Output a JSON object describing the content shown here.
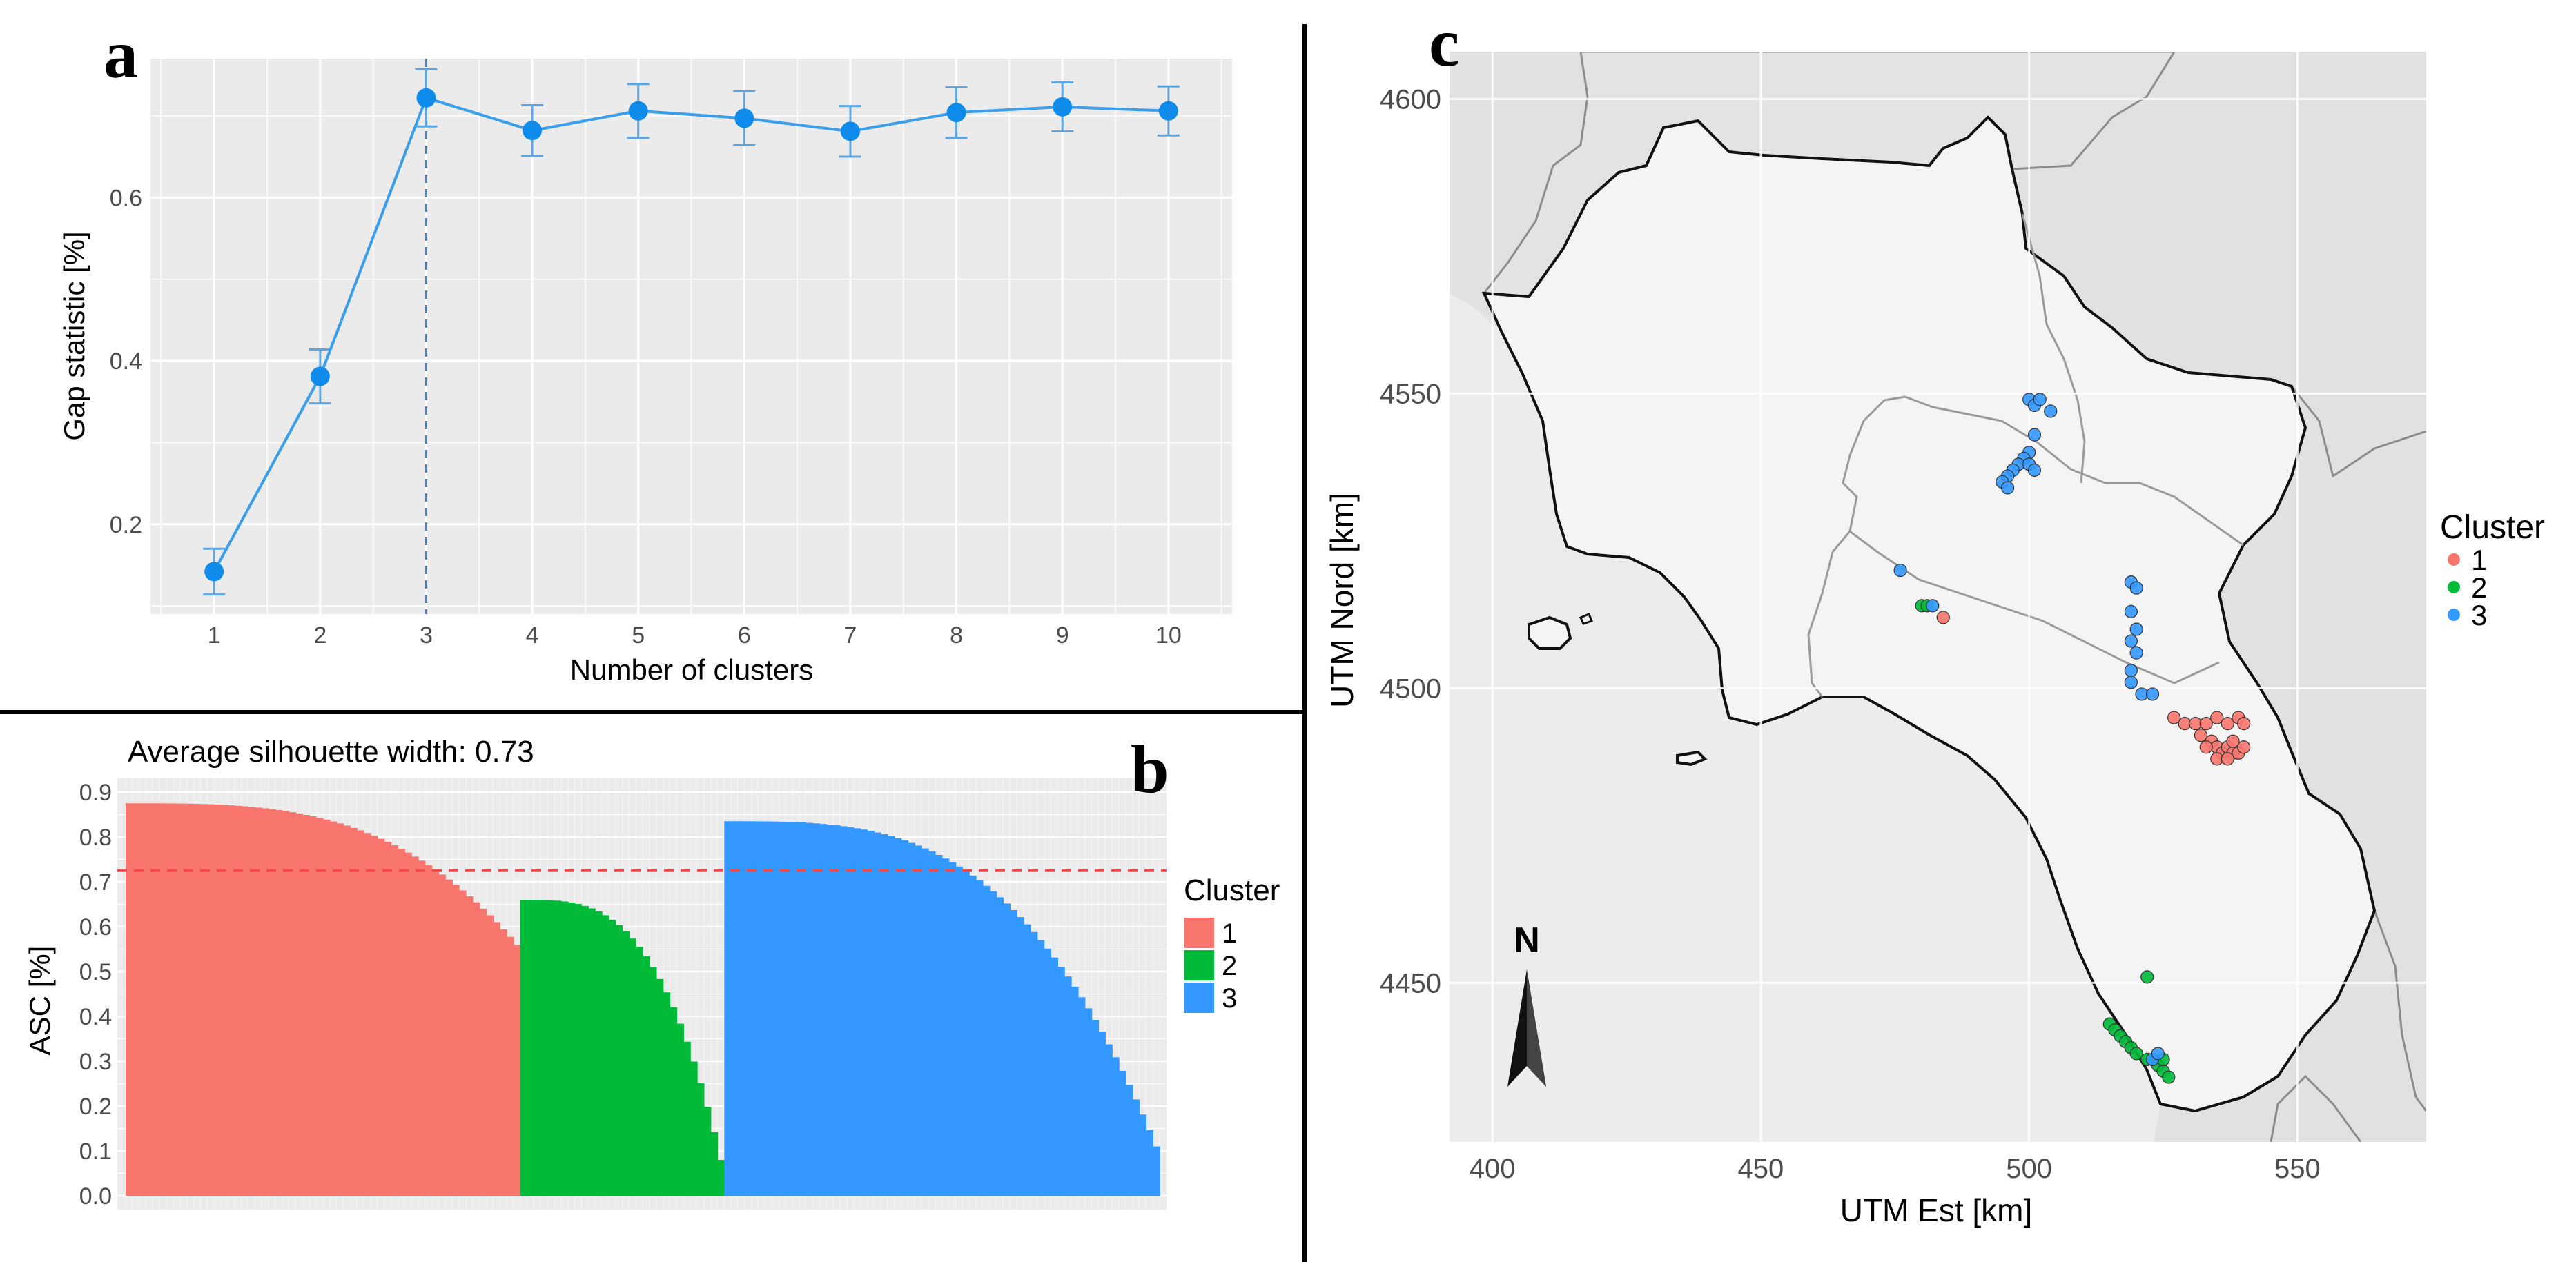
{
  "colors": {
    "panel_bg": "#ebebeb",
    "grid": "#ffffff",
    "line_blue": "#1e90ff",
    "point_blue": "#0f8ceb",
    "errorbar": "#5da6e3",
    "cluster1": "#f8766d",
    "cluster2": "#00ba38",
    "cluster3": "#3398ff",
    "refline": "#f04a4a",
    "region_fill": "#f5f5f5",
    "border_dark": "#111111",
    "border_gray": "#9a9a9a"
  },
  "chart_data": [
    {
      "id": "a",
      "type": "line",
      "panel_label": "a",
      "title": "",
      "xlabel": "Number of clusters",
      "ylabel": "Gap statistic [%]",
      "x": [
        1,
        2,
        3,
        4,
        5,
        6,
        7,
        8,
        9,
        10
      ],
      "x_tick_labels": [
        "1",
        "2",
        "3",
        "4",
        "5",
        "6",
        "7",
        "8",
        "9",
        "10"
      ],
      "y": [
        0.142,
        0.381,
        0.722,
        0.682,
        0.706,
        0.697,
        0.681,
        0.704,
        0.711,
        0.706
      ],
      "y_err": [
        0.028,
        0.033,
        0.035,
        0.031,
        0.033,
        0.033,
        0.031,
        0.031,
        0.03,
        0.03
      ],
      "y_ticks": [
        0.2,
        0.4,
        0.6
      ],
      "y_tick_labels": [
        "0.2",
        "0.4",
        "0.6"
      ],
      "xlim": [
        0.4,
        10.6
      ],
      "ylim": [
        0.09,
        0.77
      ],
      "optimal_k": 3,
      "grid": true
    },
    {
      "id": "b",
      "type": "bar",
      "panel_label": "b",
      "title": "Average silhouette width: 0.73",
      "xlabel": "",
      "ylabel": "ASC [%]",
      "ylim": [
        0,
        0.9
      ],
      "y_ticks": [
        0.0,
        0.1,
        0.2,
        0.3,
        0.4,
        0.5,
        0.6,
        0.7,
        0.8,
        0.9
      ],
      "y_tick_labels": [
        "0.0",
        "0.1",
        "0.2",
        "0.3",
        "0.4",
        "0.5",
        "0.6",
        "0.7",
        "0.8",
        "0.9"
      ],
      "average_line": 0.725,
      "legend_title": "Cluster",
      "legend_entries": [
        "1",
        "2",
        "3"
      ],
      "series": [
        {
          "name": "1",
          "count": 58,
          "values_start": 0.875,
          "values_end": 0.56
        },
        {
          "name": "2",
          "count": 30,
          "values_start": 0.66,
          "values_end": 0.08
        },
        {
          "name": "3",
          "count": 64,
          "values_start": 0.835,
          "values_end": 0.11
        }
      ],
      "grid": true
    },
    {
      "id": "c",
      "type": "scatter",
      "panel_label": "c",
      "xlabel": "UTM Est [km]",
      "ylabel": "UTM Nord [km]",
      "xlim": [
        392,
        574
      ],
      "ylim": [
        4423,
        4608
      ],
      "x_ticks": [
        400,
        450,
        500,
        550
      ],
      "x_tick_labels": [
        "400",
        "450",
        "500",
        "550"
      ],
      "y_ticks": [
        4450,
        4500,
        4550,
        4600
      ],
      "y_tick_labels": [
        "4450",
        "4500",
        "4550",
        "4600"
      ],
      "north_label": "N",
      "legend_title": "Cluster",
      "legend_entries": [
        "1",
        "2",
        "3"
      ],
      "series": [
        {
          "name": "1",
          "points": [
            [
              484,
              4512
            ],
            [
              527,
              4495
            ],
            [
              529,
              4494
            ],
            [
              531,
              4494
            ],
            [
              533,
              4494
            ],
            [
              535,
              4495
            ],
            [
              537,
              4494
            ],
            [
              539,
              4495
            ],
            [
              540,
              4494
            ],
            [
              532,
              4492
            ],
            [
              534,
              4491
            ],
            [
              535,
              4490
            ],
            [
              536,
              4489
            ],
            [
              537,
              4490
            ],
            [
              538,
              4489
            ],
            [
              539,
              4489
            ],
            [
              540,
              4490
            ],
            [
              535,
              4488
            ],
            [
              537,
              4488
            ],
            [
              538,
              4491
            ],
            [
              533,
              4490
            ]
          ]
        },
        {
          "name": "2",
          "points": [
            [
              480,
              4514
            ],
            [
              481,
              4514
            ],
            [
              522,
              4451
            ],
            [
              515,
              4443
            ],
            [
              516,
              4442
            ],
            [
              517,
              4441
            ],
            [
              518,
              4440
            ],
            [
              519,
              4439
            ],
            [
              520,
              4438
            ],
            [
              522,
              4437
            ],
            [
              524,
              4436
            ],
            [
              525,
              4435
            ],
            [
              526,
              4434
            ],
            [
              525,
              4437
            ]
          ]
        },
        {
          "name": "3",
          "points": [
            [
              476,
              4520
            ],
            [
              482,
              4514
            ],
            [
              500,
              4549
            ],
            [
              501,
              4548
            ],
            [
              502,
              4549
            ],
            [
              504,
              4547
            ],
            [
              501,
              4543
            ],
            [
              500,
              4540
            ],
            [
              499,
              4539
            ],
            [
              498,
              4538
            ],
            [
              497,
              4537
            ],
            [
              496,
              4536
            ],
            [
              495,
              4535
            ],
            [
              496,
              4534
            ],
            [
              500,
              4538
            ],
            [
              501,
              4537
            ],
            [
              519,
              4518
            ],
            [
              520,
              4517
            ],
            [
              519,
              4513
            ],
            [
              520,
              4510
            ],
            [
              519,
              4508
            ],
            [
              520,
              4506
            ],
            [
              519,
              4503
            ],
            [
              519,
              4501
            ],
            [
              521,
              4499
            ],
            [
              523,
              4499
            ],
            [
              523,
              4437
            ],
            [
              524,
              4438
            ]
          ]
        }
      ],
      "grid": true
    }
  ]
}
